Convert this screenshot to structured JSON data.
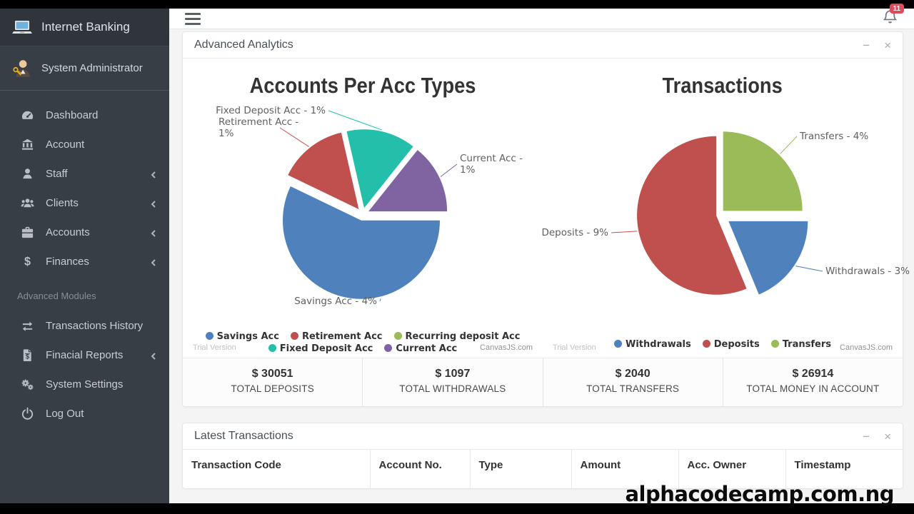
{
  "ui": {
    "minimize": "−",
    "close": "×"
  },
  "sidebar": {
    "brand": "Internet Banking",
    "user": "System Administrator",
    "items": [
      {
        "label": "Dashboard",
        "icon": "dashboard",
        "chevron": false
      },
      {
        "label": "Account",
        "icon": "bank",
        "chevron": false
      },
      {
        "label": "Staff",
        "icon": "user",
        "chevron": true
      },
      {
        "label": "Clients",
        "icon": "users",
        "chevron": true
      },
      {
        "label": "Accounts",
        "icon": "briefcase",
        "chevron": true
      },
      {
        "label": "Finances",
        "icon": "dollar",
        "chevron": true
      }
    ],
    "section_label": "Advanced Modules",
    "items2": [
      {
        "label": "Transactions History",
        "icon": "exchange",
        "chevron": false
      },
      {
        "label": "Finacial Reports",
        "icon": "file-dollar",
        "chevron": true
      },
      {
        "label": "System Settings",
        "icon": "gears",
        "chevron": false
      },
      {
        "label": "Log Out",
        "icon": "power",
        "chevron": false
      }
    ]
  },
  "topbar": {
    "notification_count": "11"
  },
  "analytics_panel": {
    "title": "Advanced Analytics",
    "stats": [
      {
        "value": "$ 30051",
        "label": "TOTAL DEPOSITS"
      },
      {
        "value": "$ 1097",
        "label": "TOTAL WITHDRAWALS"
      },
      {
        "value": "$ 2040",
        "label": "TOTAL TRANSFERS"
      },
      {
        "value": "$ 26914",
        "label": "TOTAL MONEY IN ACCOUNT"
      }
    ]
  },
  "chart_data": [
    {
      "type": "pie",
      "title": "Accounts Per Acc Types",
      "series": [
        {
          "name": "Savings Acc",
          "value": 4,
          "color": "#4F81BC",
          "label": "Savings Acc - 4%"
        },
        {
          "name": "Retirement Acc",
          "value": 1,
          "color": "#C0504E",
          "label": "Retirement Acc - 1%"
        },
        {
          "name": "Recurring deposit Acc",
          "value": 0,
          "color": "#9BBB58",
          "label": ""
        },
        {
          "name": "Fixed Deposit Acc",
          "value": 1,
          "color": "#23BFAA",
          "label": "Fixed Deposit Acc - 1%"
        },
        {
          "name": "Current Acc",
          "value": 1,
          "color": "#8064A2",
          "label": "Current Acc - 1%"
        }
      ],
      "legend_rows": [
        [
          "Savings Acc",
          "Retirement Acc",
          "Recurring deposit Acc"
        ],
        [
          "Fixed Deposit Acc",
          "Current Acc"
        ]
      ],
      "legend_position": "bottom",
      "footnote_left": "Trial Version",
      "footnote_right": "CanvasJS.com"
    },
    {
      "type": "pie",
      "title": "Transactions",
      "series": [
        {
          "name": "Withdrawals",
          "value": 3,
          "color": "#4F81BC",
          "label": "Withdrawals - 3%"
        },
        {
          "name": "Deposits",
          "value": 9,
          "color": "#C0504E",
          "label": "Deposits - 9%"
        },
        {
          "name": "Transfers",
          "value": 4,
          "color": "#9BBB58",
          "label": "Transfers - 4%"
        }
      ],
      "legend_rows": [
        [
          "Withdrawals",
          "Deposits",
          "Transfers"
        ]
      ],
      "legend_position": "bottom",
      "footnote_left": "Trial Version",
      "footnote_right": "CanvasJS.com"
    }
  ],
  "transactions_panel": {
    "title": "Latest Transactions",
    "columns": [
      "Transaction Code",
      "Account No.",
      "Type",
      "Amount",
      "Acc. Owner",
      "Timestamp"
    ]
  },
  "watermark": {
    "text": "alphacodecamp.com.ng"
  }
}
